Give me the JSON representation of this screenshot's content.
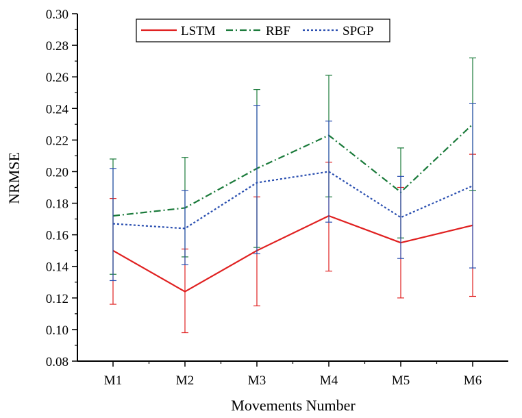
{
  "chart_data": {
    "type": "line",
    "title": "",
    "xlabel": "Movements Number",
    "ylabel": "NRMSE",
    "categories": [
      "M1",
      "M2",
      "M3",
      "M4",
      "M5",
      "M6"
    ],
    "ylim": [
      0.08,
      0.3
    ],
    "yticks": [
      "0.08",
      "0.10",
      "0.12",
      "0.14",
      "0.16",
      "0.18",
      "0.20",
      "0.22",
      "0.24",
      "0.26",
      "0.28",
      "0.30"
    ],
    "grid": false,
    "legend_position": "top-left, horizontal",
    "series": [
      {
        "name": "LSTM",
        "color": "#e02020",
        "line_style": "solid",
        "values": [
          0.15,
          0.124,
          0.15,
          0.172,
          0.155,
          0.166
        ],
        "error_upper": [
          0.183,
          0.151,
          0.184,
          0.206,
          0.19,
          0.211
        ],
        "error_lower": [
          0.116,
          0.098,
          0.115,
          0.137,
          0.12,
          0.121
        ]
      },
      {
        "name": "RBF",
        "color": "#1a7a3a",
        "line_style": "dash-dot",
        "values": [
          0.172,
          0.177,
          0.202,
          0.223,
          0.187,
          0.23
        ],
        "error_upper": [
          0.208,
          0.209,
          0.252,
          0.261,
          0.215,
          0.272
        ],
        "error_lower": [
          0.135,
          0.146,
          0.152,
          0.184,
          0.158,
          0.188
        ]
      },
      {
        "name": "SPGP",
        "color": "#2a4fb0",
        "line_style": "dotted",
        "values": [
          0.167,
          0.164,
          0.193,
          0.2,
          0.171,
          0.191
        ],
        "error_upper": [
          0.202,
          0.188,
          0.242,
          0.232,
          0.197,
          0.243
        ],
        "error_lower": [
          0.131,
          0.141,
          0.148,
          0.168,
          0.145,
          0.139
        ]
      }
    ]
  }
}
